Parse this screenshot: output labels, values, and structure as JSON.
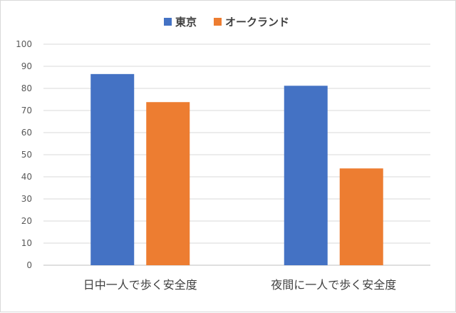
{
  "chart_data": {
    "type": "bar",
    "title": "",
    "xlabel": "",
    "ylabel": "",
    "categories": [
      "日中一人で歩く安全度",
      "夜間に一人で歩く安全度"
    ],
    "series": [
      {
        "name": "東京",
        "values": [
          86.5,
          81.2
        ],
        "color": "#4472C4"
      },
      {
        "name": "オークランド",
        "values": [
          73.8,
          43.8
        ],
        "color": "#ED7D31"
      }
    ],
    "ylim": [
      0,
      100
    ],
    "yticks": [
      "0",
      "10",
      "20",
      "30",
      "40",
      "50",
      "60",
      "70",
      "80",
      "90",
      "100"
    ],
    "grid": true,
    "legend_position": "top"
  }
}
